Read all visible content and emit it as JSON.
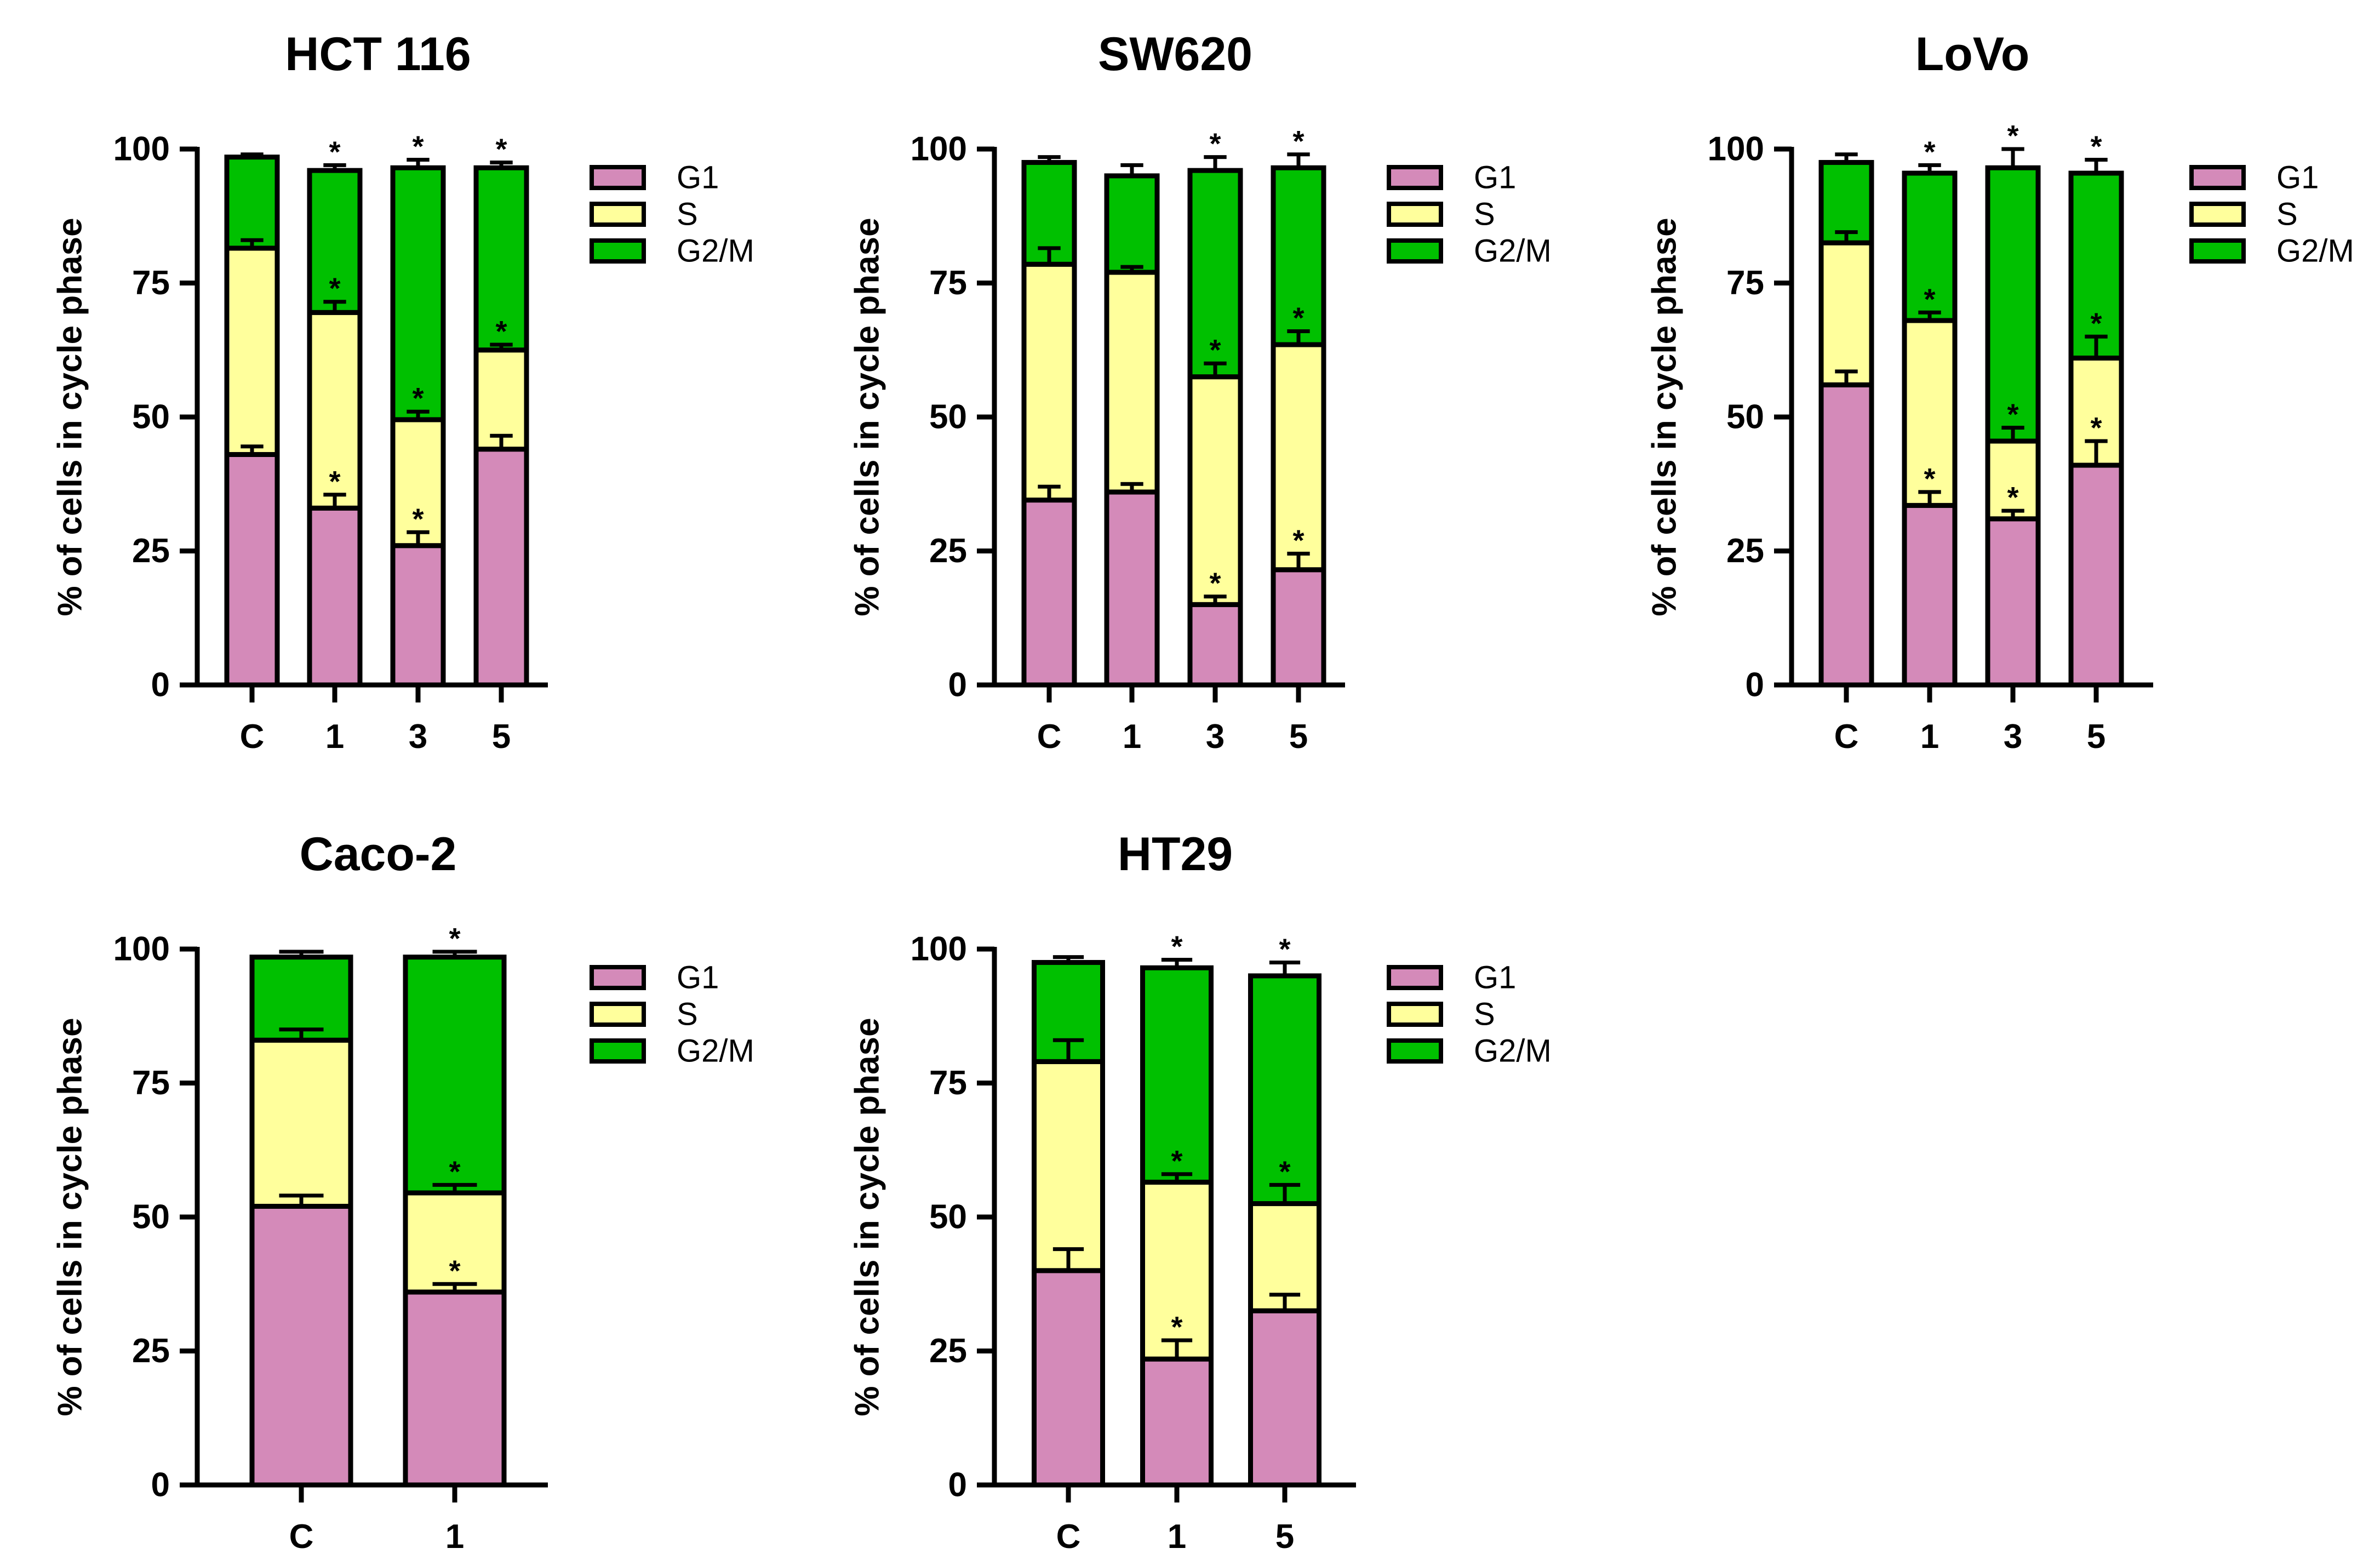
{
  "chart_data": [
    {
      "type": "bar",
      "stacked": true,
      "title": "HCT 116",
      "ylabel": "% of cells in cycle phase",
      "xlabel": "",
      "ylim": [
        0,
        100
      ],
      "yticks": [
        "0",
        "25",
        "50",
        "75",
        "100"
      ],
      "categories": [
        "C",
        "1",
        "3",
        "5"
      ],
      "series": [
        {
          "name": "G1",
          "values": [
            43,
            33,
            26,
            44
          ],
          "errors": [
            1.5,
            2.5,
            2.5,
            2.5
          ],
          "marks": [
            "",
            "*",
            "*",
            ""
          ]
        },
        {
          "name": "S",
          "values": [
            38.5,
            36.5,
            23.5,
            18.5
          ],
          "errors": [
            1.5,
            2,
            1.5,
            1
          ],
          "marks": [
            "",
            "*",
            "*",
            "*"
          ]
        },
        {
          "name": "G2/M",
          "values": [
            17,
            26.5,
            47,
            34
          ],
          "errors": [
            0.5,
            1,
            1.5,
            1
          ],
          "marks": [
            "",
            "*",
            "*",
            "*"
          ]
        }
      ]
    },
    {
      "type": "bar",
      "stacked": true,
      "title": "SW620",
      "ylabel": "% of cells in cycle phase",
      "xlabel": "",
      "ylim": [
        0,
        100
      ],
      "yticks": [
        "0",
        "25",
        "50",
        "75",
        "100"
      ],
      "categories": [
        "C",
        "1",
        "3",
        "5"
      ],
      "series": [
        {
          "name": "G1",
          "values": [
            34.5,
            36,
            15,
            21.5
          ],
          "errors": [
            2.5,
            1.5,
            1.5,
            3
          ],
          "marks": [
            "",
            "",
            "*",
            "*"
          ]
        },
        {
          "name": "S",
          "values": [
            44,
            41,
            42.5,
            42
          ],
          "errors": [
            3,
            1,
            2.5,
            2.5
          ],
          "marks": [
            "",
            "",
            "*",
            "*"
          ]
        },
        {
          "name": "G2/M",
          "values": [
            19,
            18,
            38.5,
            33
          ],
          "errors": [
            1,
            2,
            2.5,
            2.5
          ],
          "marks": [
            "",
            "",
            "*",
            "*"
          ]
        }
      ]
    },
    {
      "type": "bar",
      "stacked": true,
      "title": "LoVo",
      "ylabel": "% of cells in cycle phase",
      "xlabel": "",
      "ylim": [
        0,
        100
      ],
      "yticks": [
        "0",
        "25",
        "50",
        "75",
        "100"
      ],
      "categories": [
        "C",
        "1",
        "3",
        "5"
      ],
      "series": [
        {
          "name": "G1",
          "values": [
            56,
            33.5,
            31,
            41
          ],
          "errors": [
            2.5,
            2.5,
            1.5,
            4.5
          ],
          "marks": [
            "",
            "*",
            "*",
            "*"
          ]
        },
        {
          "name": "S",
          "values": [
            26.5,
            34.5,
            14.5,
            20
          ],
          "errors": [
            2,
            1.5,
            2.5,
            4
          ],
          "marks": [
            "",
            "*",
            "*",
            "*"
          ]
        },
        {
          "name": "G2/M",
          "values": [
            15,
            27.5,
            51,
            34.5
          ],
          "errors": [
            1.5,
            1.5,
            3.5,
            2.5
          ],
          "marks": [
            "",
            "*",
            "*",
            "*"
          ]
        }
      ]
    },
    {
      "type": "bar",
      "stacked": true,
      "title": "Caco-2",
      "ylabel": "% of cells in cycle phase",
      "xlabel": "",
      "ylim": [
        0,
        100
      ],
      "yticks": [
        "0",
        "25",
        "50",
        "75",
        "100"
      ],
      "categories": [
        "C",
        "1"
      ],
      "series": [
        {
          "name": "G1",
          "values": [
            52,
            36
          ],
          "errors": [
            2,
            1.5
          ],
          "marks": [
            "",
            "*"
          ]
        },
        {
          "name": "S",
          "values": [
            31,
            18.5
          ],
          "errors": [
            2,
            1.5
          ],
          "marks": [
            "",
            "*"
          ]
        },
        {
          "name": "G2/M",
          "values": [
            15.5,
            44
          ],
          "errors": [
            1,
            1
          ],
          "marks": [
            "",
            "*"
          ]
        }
      ]
    },
    {
      "type": "bar",
      "stacked": true,
      "title": "HT29",
      "ylabel": "% of cells in cycle phase",
      "xlabel": "",
      "ylim": [
        0,
        100
      ],
      "yticks": [
        "0",
        "25",
        "50",
        "75",
        "100"
      ],
      "categories": [
        "C",
        "1",
        "5"
      ],
      "series": [
        {
          "name": "G1",
          "values": [
            40,
            23.5,
            32.5
          ],
          "errors": [
            4,
            3.5,
            3
          ],
          "marks": [
            "",
            "*",
            ""
          ]
        },
        {
          "name": "S",
          "values": [
            39,
            33,
            20
          ],
          "errors": [
            4,
            1.5,
            3.5
          ],
          "marks": [
            "",
            "*",
            "*"
          ]
        },
        {
          "name": "G2/M",
          "values": [
            18.5,
            40,
            42.5
          ],
          "errors": [
            1,
            1.5,
            2.5
          ],
          "marks": [
            "",
            "*",
            "*"
          ]
        }
      ]
    }
  ],
  "colors": {
    "G1": "#d48ab9",
    "S": "#ffff9c",
    "G2/M": "#00c000",
    "outline": "#000000"
  }
}
